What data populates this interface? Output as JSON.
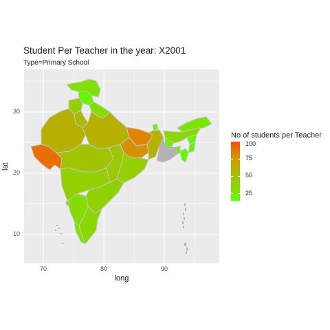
{
  "chart_data": {
    "type": "map",
    "title": "Student Per Teacher in the year: X2001",
    "subtitle": "Type=Primary School",
    "xlabel": "long",
    "ylabel": "lat",
    "x_ticks": [
      "70",
      "80",
      "90"
    ],
    "y_ticks": [
      "10",
      "20",
      "30"
    ],
    "xlim": [
      67,
      99
    ],
    "ylim": [
      5,
      37
    ],
    "legend_title": "No of students per Teacher",
    "legend_ticks": [
      "25",
      "50",
      "75",
      "100"
    ],
    "legend_range": [
      13,
      100
    ],
    "color_scale": {
      "low": "#59ff00",
      "high": "#ff4a00"
    },
    "grid": true,
    "regions": [
      {
        "name": "Jammu & Kashmir",
        "value": 28
      },
      {
        "name": "Himachal Pradesh",
        "value": 18
      },
      {
        "name": "Punjab",
        "value": 40
      },
      {
        "name": "Haryana",
        "value": 55
      },
      {
        "name": "Uttarakhand",
        "value": 30
      },
      {
        "name": "Rajasthan",
        "value": 60
      },
      {
        "name": "Uttar Pradesh",
        "value": 60
      },
      {
        "name": "Bihar",
        "value": 82
      },
      {
        "name": "Gujarat",
        "value": 88
      },
      {
        "name": "Madhya Pradesh",
        "value": 48
      },
      {
        "name": "Jharkhand",
        "value": 78
      },
      {
        "name": "West Bengal",
        "value": 60
      },
      {
        "name": "Sikkim",
        "value": 15
      },
      {
        "name": "Chhattisgarh",
        "value": 45
      },
      {
        "name": "Odisha",
        "value": 40
      },
      {
        "name": "Maharashtra",
        "value": 40
      },
      {
        "name": "Telangana/Andhra Pradesh",
        "value": 38
      },
      {
        "name": "Karnataka",
        "value": 30
      },
      {
        "name": "Goa",
        "value": 25
      },
      {
        "name": "Kerala",
        "value": 25
      },
      {
        "name": "Tamil Nadu",
        "value": 35
      },
      {
        "name": "Arunachal Pradesh",
        "value": 25
      },
      {
        "name": "Assam",
        "value": 35
      },
      {
        "name": "Meghalaya",
        "value": 20
      },
      {
        "name": "Nagaland",
        "value": 18
      },
      {
        "name": "Manipur",
        "value": 18
      },
      {
        "name": "Mizoram",
        "value": 15
      },
      {
        "name": "Tripura",
        "value": 20
      }
    ]
  }
}
